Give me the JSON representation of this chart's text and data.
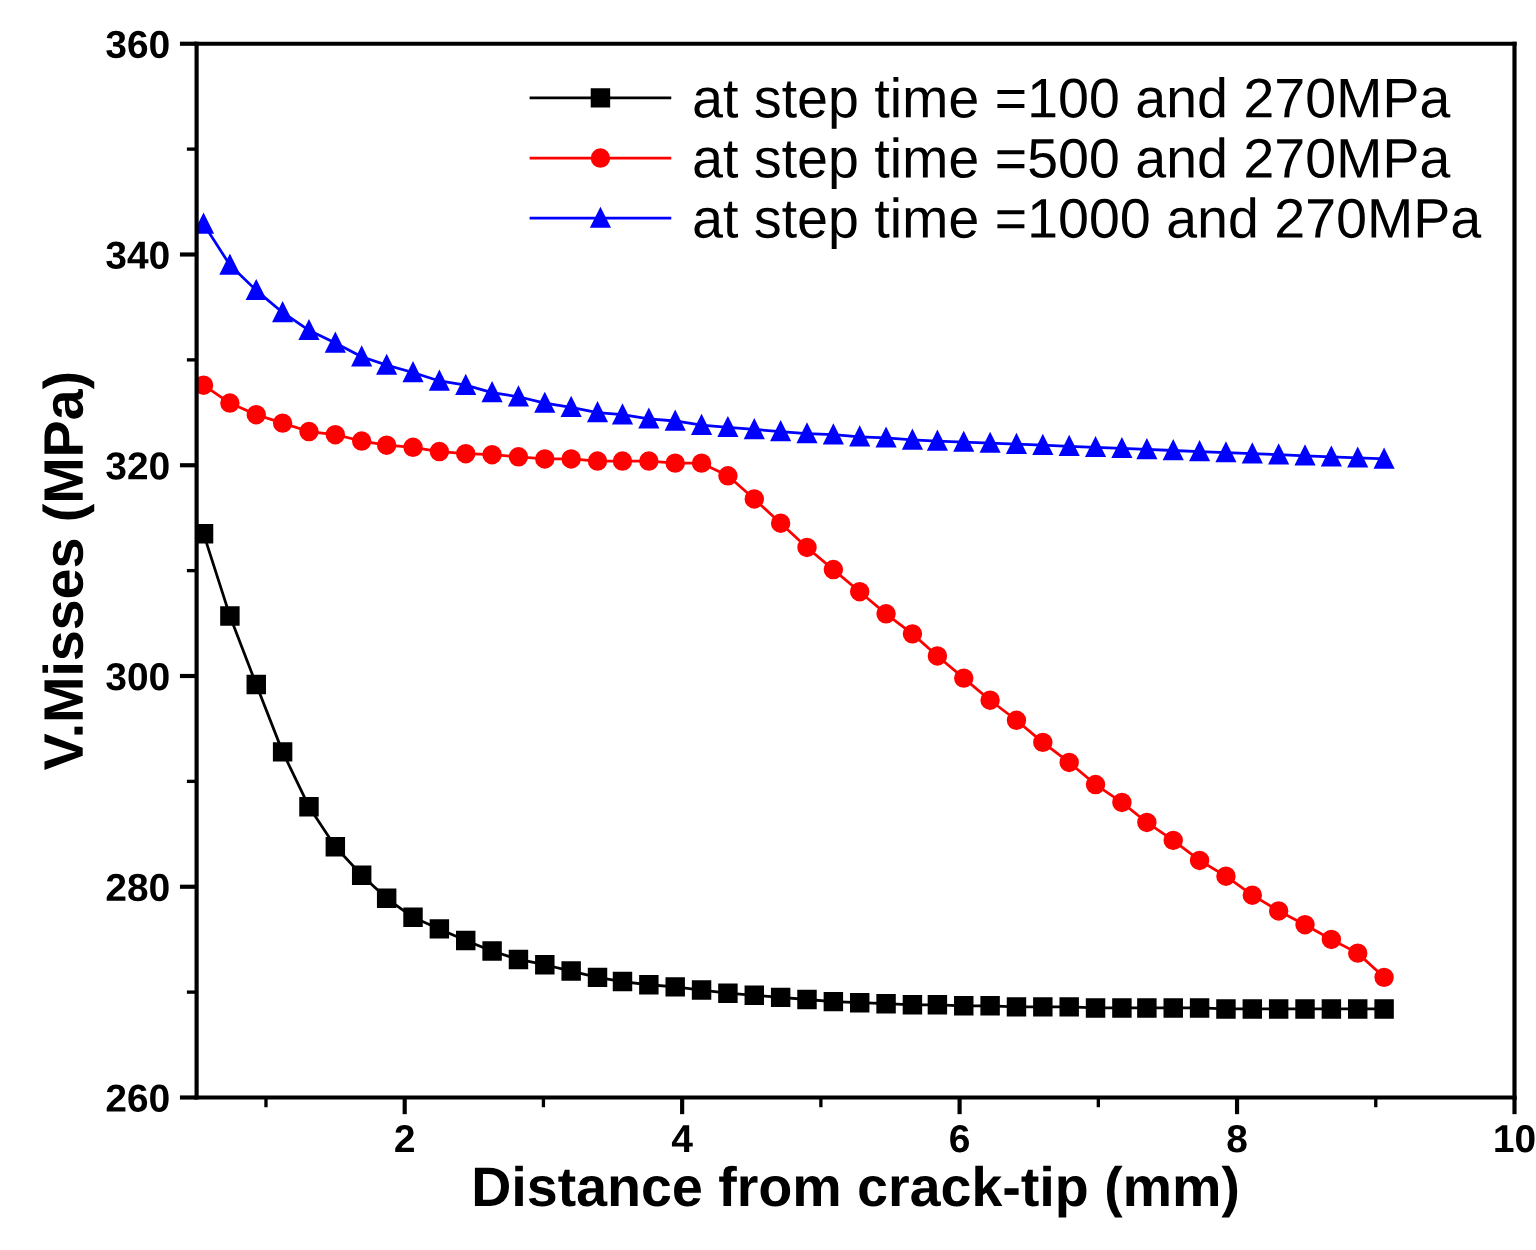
{
  "chart_data": {
    "type": "line",
    "xlabel": "Distance from crack-tip (mm)",
    "ylabel": "V.Misses (MPa)",
    "x": [
      0.55,
      0.74,
      0.93,
      1.12,
      1.31,
      1.5,
      1.69,
      1.87,
      2.06,
      2.25,
      2.44,
      2.63,
      2.82,
      3.01,
      3.2,
      3.39,
      3.57,
      3.76,
      3.95,
      4.14,
      4.33,
      4.52,
      4.71,
      4.9,
      5.09,
      5.28,
      5.47,
      5.66,
      5.84,
      6.03,
      6.22,
      6.41,
      6.6,
      6.79,
      6.98,
      7.17,
      7.35,
      7.54,
      7.73,
      7.92,
      8.11,
      8.3,
      8.49,
      8.68,
      8.87,
      9.06
    ],
    "xlim": [
      0.5,
      10
    ],
    "xticks": [
      2,
      4,
      6,
      8,
      10
    ],
    "ylim": [
      260,
      360
    ],
    "yticks": [
      260,
      280,
      300,
      320,
      340,
      360
    ],
    "grid": false,
    "legend": "top right",
    "line_style": "solid",
    "series": [
      {
        "name": "at step time =100 and 270MPa",
        "color": "#000000",
        "marker": "square",
        "values": [
          313.5,
          305.7,
          299.2,
          292.8,
          287.6,
          283.8,
          281.1,
          278.9,
          277.1,
          276.0,
          274.9,
          273.9,
          273.1,
          272.6,
          272.0,
          271.4,
          271.0,
          270.7,
          270.5,
          270.2,
          269.9,
          269.7,
          269.5,
          269.3,
          269.1,
          269.0,
          268.9,
          268.8,
          268.8,
          268.7,
          268.7,
          268.6,
          268.6,
          268.6,
          268.5,
          268.5,
          268.5,
          268.5,
          268.5,
          268.4,
          268.4,
          268.4,
          268.4,
          268.4,
          268.4,
          268.4
        ]
      },
      {
        "name": "at step time =500 and 270MPa",
        "color": "#ff0000",
        "marker": "circle",
        "values": [
          327.6,
          325.9,
          324.8,
          324.0,
          323.2,
          322.9,
          322.3,
          321.9,
          321.7,
          321.3,
          321.1,
          321.0,
          320.8,
          320.6,
          320.6,
          320.4,
          320.4,
          320.4,
          320.2,
          320.2,
          319.0,
          316.8,
          314.5,
          312.2,
          310.1,
          308.0,
          305.9,
          304.0,
          301.9,
          299.8,
          297.7,
          295.8,
          293.7,
          291.8,
          289.7,
          288.0,
          286.1,
          284.4,
          282.5,
          281.0,
          279.2,
          277.7,
          276.4,
          275.0,
          273.7,
          271.4
        ]
      },
      {
        "name": "at step time =1000 and 270MPa",
        "color": "#0000ff",
        "marker": "triangle",
        "values": [
          342.9,
          339.0,
          336.6,
          334.5,
          332.8,
          331.6,
          330.3,
          329.5,
          328.8,
          328.0,
          327.6,
          326.9,
          326.5,
          325.9,
          325.5,
          325.0,
          324.8,
          324.4,
          324.2,
          323.8,
          323.6,
          323.4,
          323.2,
          323.0,
          322.9,
          322.7,
          322.6,
          322.4,
          322.3,
          322.2,
          322.1,
          322.0,
          321.9,
          321.8,
          321.7,
          321.6,
          321.5,
          321.4,
          321.3,
          321.2,
          321.1,
          321.0,
          320.9,
          320.8,
          320.7,
          320.6
        ]
      }
    ]
  }
}
